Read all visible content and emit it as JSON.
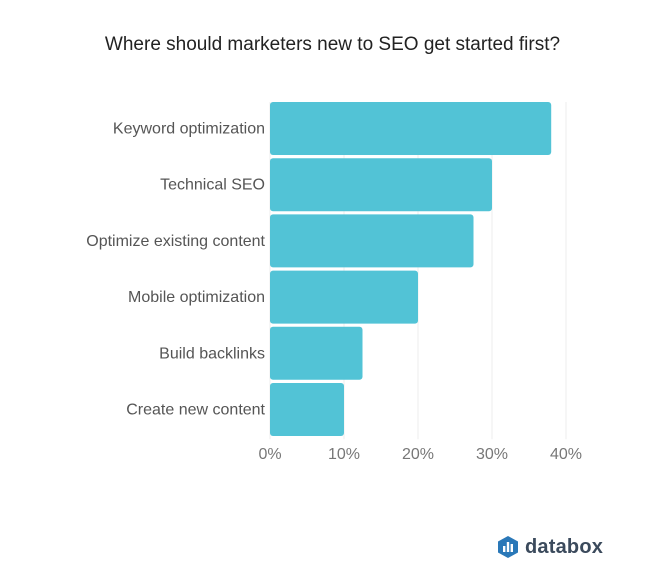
{
  "chart_data": {
    "type": "bar",
    "orientation": "horizontal",
    "title": "Where should marketers new to SEO get started first?",
    "categories": [
      "Keyword optimization",
      "Technical SEO",
      "Optimize existing content",
      "Mobile optimization",
      "Build backlinks",
      "Create new content"
    ],
    "values": [
      38,
      30,
      27.5,
      20,
      12.5,
      10
    ],
    "unit": "%",
    "xlim": [
      0,
      40
    ],
    "xticks": [
      "0%",
      "10%",
      "20%",
      "30%",
      "40%"
    ],
    "grid": true,
    "bar_color": "#52c3d6",
    "grid_color": "#eeeeee"
  },
  "brand": {
    "name": "databox",
    "icon": "databox-logo-icon",
    "color": "#3b4a5c"
  }
}
